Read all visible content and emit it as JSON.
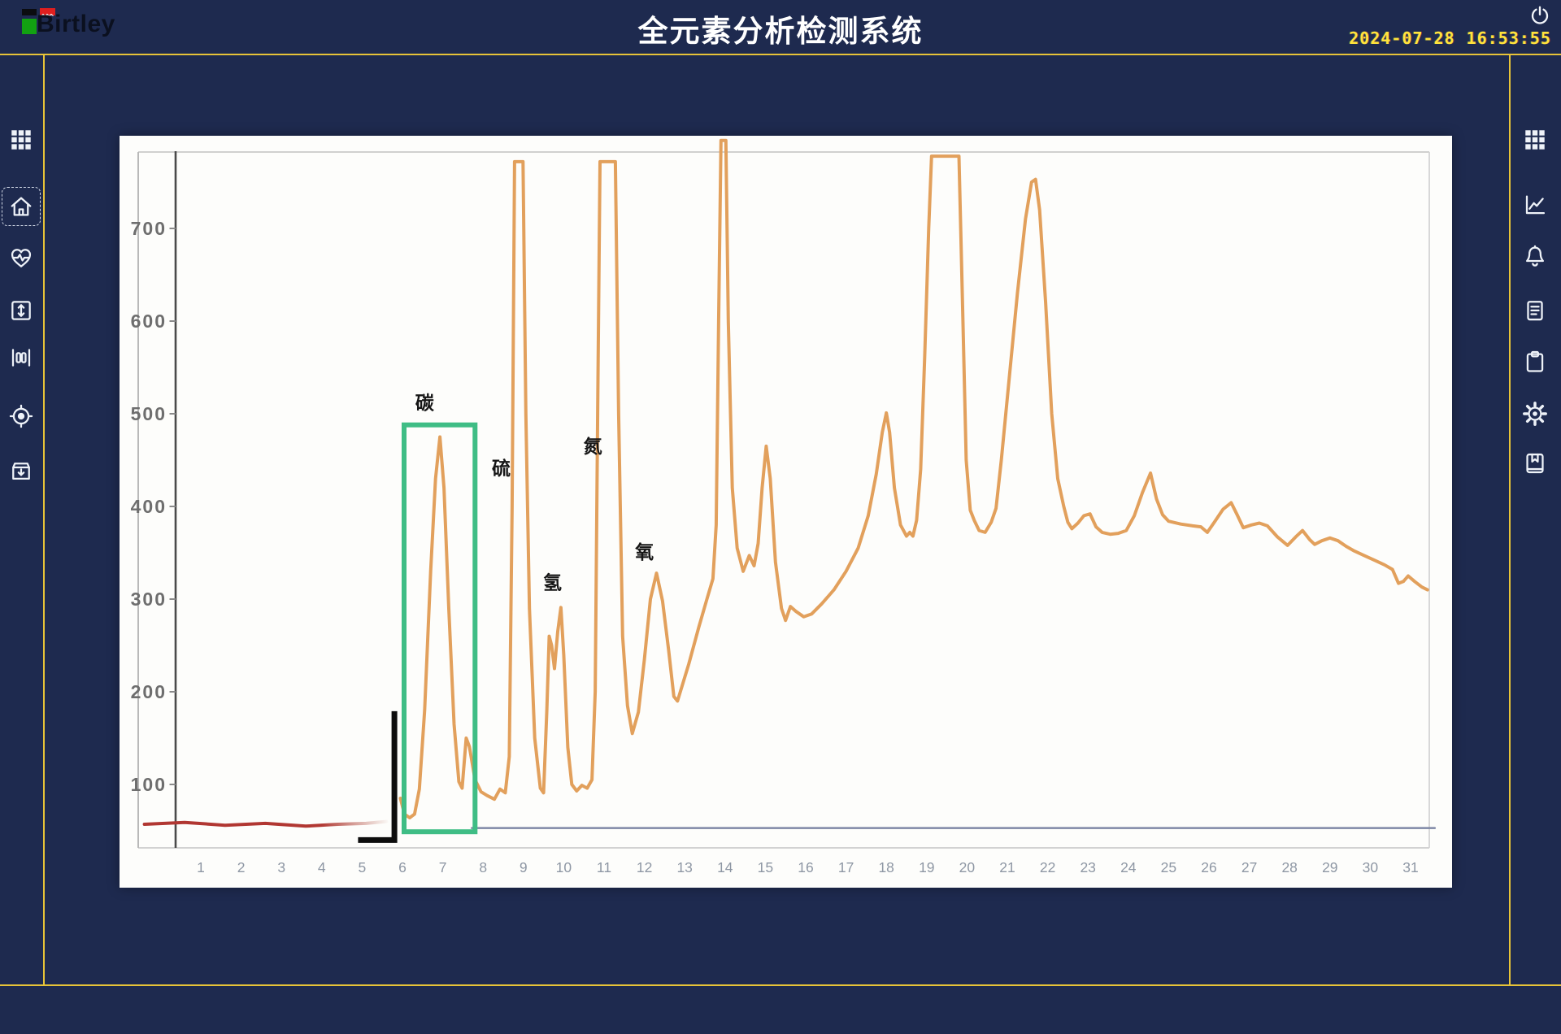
{
  "header": {
    "logo_text": "Birtley",
    "title": "全元素分析检测系统",
    "date": "2024-07-28",
    "time": "16:53:55"
  },
  "left_sidebar": {
    "icons": [
      {
        "name": "apps-grid",
        "active": false
      },
      {
        "name": "home",
        "active": true
      },
      {
        "name": "heartbeat",
        "active": false
      },
      {
        "name": "expand-vertical",
        "active": false
      },
      {
        "name": "gauge-columns",
        "active": false
      },
      {
        "name": "target",
        "active": false
      },
      {
        "name": "archive-import",
        "active": false
      }
    ]
  },
  "right_sidebar": {
    "icons": [
      {
        "name": "apps-grid",
        "active": false
      },
      {
        "name": "line-chart",
        "active": false
      },
      {
        "name": "bell",
        "active": false
      },
      {
        "name": "report",
        "active": false
      },
      {
        "name": "clipboard",
        "active": false
      },
      {
        "name": "settings-gear",
        "active": false
      },
      {
        "name": "manual-book",
        "active": false
      }
    ]
  },
  "colors": {
    "app_background": "#1e2a4f",
    "accent_yellow": "#e7c338",
    "clock_yellow": "#ffe43c",
    "curve_orange": "#e2a05c",
    "highlight_green": "#3fbd85",
    "baseline_red": "#b13732",
    "panel_background": "#fdfdfb"
  },
  "chart_data": {
    "type": "line",
    "title": "",
    "xlabel": "",
    "ylabel": "",
    "xlim": [
      1,
      31
    ],
    "ylim": [
      40,
      800
    ],
    "grid": false,
    "x_ticks": [
      1,
      2,
      3,
      4,
      5,
      6,
      7,
      8,
      9,
      10,
      11,
      12,
      13,
      14,
      15,
      16,
      17,
      18,
      19,
      20,
      21,
      22,
      23,
      24,
      25,
      26,
      27,
      28,
      29,
      30,
      31
    ],
    "y_ticks": [
      100,
      200,
      300,
      400,
      500,
      600,
      700
    ],
    "peak_labels": [
      {
        "text": "碳",
        "x": 6.55,
        "y": 505
      },
      {
        "text": "硫",
        "x": 8.45,
        "y": 434
      },
      {
        "text": "氢",
        "x": 9.72,
        "y": 311
      },
      {
        "text": "氮",
        "x": 10.72,
        "y": 458
      },
      {
        "text": "氧",
        "x": 12.0,
        "y": 344
      }
    ],
    "series": [
      {
        "name": "injection-baseline",
        "color": "#b13732",
        "width": 4,
        "fade_end": true,
        "points": [
          [
            -0.4,
            57
          ],
          [
            0.6,
            59
          ],
          [
            1.6,
            56
          ],
          [
            2.6,
            58
          ],
          [
            3.6,
            55
          ],
          [
            4.4,
            57
          ],
          [
            5.1,
            58
          ],
          [
            5.6,
            60
          ]
        ]
      },
      {
        "name": "zero-baseline",
        "color": "#7f88a6",
        "width": 2.5,
        "points": [
          [
            7.72,
            53
          ],
          [
            31.6,
            53
          ]
        ]
      },
      {
        "name": "detector-signal",
        "color": "#e2a05c",
        "width": 4,
        "points": [
          [
            5.95,
            85
          ],
          [
            6.05,
            68
          ],
          [
            6.18,
            64
          ],
          [
            6.3,
            68
          ],
          [
            6.42,
            95
          ],
          [
            6.55,
            180
          ],
          [
            6.7,
            330
          ],
          [
            6.82,
            430
          ],
          [
            6.93,
            475
          ],
          [
            7.03,
            420
          ],
          [
            7.15,
            290
          ],
          [
            7.28,
            165
          ],
          [
            7.4,
            103
          ],
          [
            7.48,
            96
          ],
          [
            7.58,
            150
          ],
          [
            7.66,
            141
          ],
          [
            7.8,
            105
          ],
          [
            7.95,
            92
          ],
          [
            8.1,
            88
          ],
          [
            8.28,
            84
          ],
          [
            8.42,
            95
          ],
          [
            8.55,
            91
          ],
          [
            8.65,
            130
          ],
          [
            8.72,
            400
          ],
          [
            8.78,
            772
          ],
          [
            8.99,
            772
          ],
          [
            9.06,
            500
          ],
          [
            9.15,
            290
          ],
          [
            9.28,
            150
          ],
          [
            9.42,
            96
          ],
          [
            9.5,
            91
          ],
          [
            9.58,
            180
          ],
          [
            9.64,
            260
          ],
          [
            9.7,
            250
          ],
          [
            9.77,
            225
          ],
          [
            9.85,
            265
          ],
          [
            9.93,
            291
          ],
          [
            10.0,
            240
          ],
          [
            10.1,
            140
          ],
          [
            10.2,
            100
          ],
          [
            10.32,
            93
          ],
          [
            10.45,
            99
          ],
          [
            10.58,
            96
          ],
          [
            10.7,
            105
          ],
          [
            10.78,
            200
          ],
          [
            10.84,
            500
          ],
          [
            10.9,
            772
          ],
          [
            11.28,
            772
          ],
          [
            11.36,
            500
          ],
          [
            11.46,
            260
          ],
          [
            11.58,
            185
          ],
          [
            11.7,
            155
          ],
          [
            11.85,
            178
          ],
          [
            12.0,
            235
          ],
          [
            12.15,
            300
          ],
          [
            12.3,
            328
          ],
          [
            12.45,
            298
          ],
          [
            12.6,
            245
          ],
          [
            12.73,
            195
          ],
          [
            12.82,
            190
          ],
          [
            13.1,
            230
          ],
          [
            13.35,
            270
          ],
          [
            13.55,
            300
          ],
          [
            13.7,
            322
          ],
          [
            13.78,
            380
          ],
          [
            13.84,
            600
          ],
          [
            13.9,
            795
          ],
          [
            14.02,
            795
          ],
          [
            14.08,
            600
          ],
          [
            14.18,
            420
          ],
          [
            14.3,
            355
          ],
          [
            14.45,
            330
          ],
          [
            14.6,
            347
          ],
          [
            14.72,
            336
          ],
          [
            14.82,
            360
          ],
          [
            14.92,
            420
          ],
          [
            15.02,
            465
          ],
          [
            15.12,
            430
          ],
          [
            15.25,
            340
          ],
          [
            15.4,
            290
          ],
          [
            15.5,
            277
          ],
          [
            15.62,
            292
          ],
          [
            15.75,
            287
          ],
          [
            15.95,
            281
          ],
          [
            16.15,
            284
          ],
          [
            16.4,
            295
          ],
          [
            16.7,
            310
          ],
          [
            17.0,
            330
          ],
          [
            17.3,
            355
          ],
          [
            17.55,
            390
          ],
          [
            17.75,
            435
          ],
          [
            17.9,
            480
          ],
          [
            18.0,
            501
          ],
          [
            18.08,
            480
          ],
          [
            18.2,
            420
          ],
          [
            18.35,
            380
          ],
          [
            18.5,
            368
          ],
          [
            18.58,
            372
          ],
          [
            18.66,
            368
          ],
          [
            18.75,
            385
          ],
          [
            18.85,
            440
          ],
          [
            18.95,
            560
          ],
          [
            19.05,
            700
          ],
          [
            19.12,
            778
          ],
          [
            19.8,
            778
          ],
          [
            19.9,
            600
          ],
          [
            19.98,
            450
          ],
          [
            20.08,
            396
          ],
          [
            20.18,
            385
          ],
          [
            20.3,
            374
          ],
          [
            20.45,
            372
          ],
          [
            20.6,
            383
          ],
          [
            20.72,
            398
          ],
          [
            20.85,
            450
          ],
          [
            21.05,
            540
          ],
          [
            21.25,
            630
          ],
          [
            21.45,
            710
          ],
          [
            21.6,
            750
          ],
          [
            21.7,
            753
          ],
          [
            21.8,
            720
          ],
          [
            21.95,
            620
          ],
          [
            22.1,
            500
          ],
          [
            22.25,
            430
          ],
          [
            22.4,
            400
          ],
          [
            22.5,
            383
          ],
          [
            22.6,
            376
          ],
          [
            22.75,
            382
          ],
          [
            22.9,
            390
          ],
          [
            23.05,
            392
          ],
          [
            23.2,
            378
          ],
          [
            23.35,
            372
          ],
          [
            23.55,
            370
          ],
          [
            23.75,
            371
          ],
          [
            23.95,
            374
          ],
          [
            24.15,
            390
          ],
          [
            24.35,
            415
          ],
          [
            24.55,
            436
          ],
          [
            24.7,
            408
          ],
          [
            24.85,
            391
          ],
          [
            25.0,
            384
          ],
          [
            25.3,
            381
          ],
          [
            25.6,
            379
          ],
          [
            25.8,
            378
          ],
          [
            25.96,
            372
          ],
          [
            26.15,
            384
          ],
          [
            26.35,
            397
          ],
          [
            26.55,
            404
          ],
          [
            26.7,
            391
          ],
          [
            26.85,
            377
          ],
          [
            27.05,
            380
          ],
          [
            27.25,
            382
          ],
          [
            27.45,
            379
          ],
          [
            27.7,
            367
          ],
          [
            27.95,
            358
          ],
          [
            28.15,
            367
          ],
          [
            28.32,
            374
          ],
          [
            28.5,
            364
          ],
          [
            28.62,
            359
          ],
          [
            28.8,
            363
          ],
          [
            29.0,
            366
          ],
          [
            29.2,
            363
          ],
          [
            29.4,
            357
          ],
          [
            29.6,
            352
          ],
          [
            29.85,
            347
          ],
          [
            30.1,
            342
          ],
          [
            30.35,
            337
          ],
          [
            30.55,
            332
          ],
          [
            30.7,
            317
          ],
          [
            30.82,
            319
          ],
          [
            30.94,
            325
          ],
          [
            31.1,
            319
          ],
          [
            31.28,
            313
          ],
          [
            31.42,
            310
          ]
        ]
      }
    ],
    "annotations": {
      "highlight_box": {
        "element": "碳",
        "x1": 6.04,
        "x2": 7.8,
        "y1": 49,
        "y2": 488,
        "color": "#3fbd85"
      },
      "bracket": {
        "points": [
          [
            4.9,
            40
          ],
          [
            5.8,
            40
          ],
          [
            5.8,
            179
          ]
        ],
        "color": "#0d0d0d",
        "width": 7
      }
    }
  }
}
